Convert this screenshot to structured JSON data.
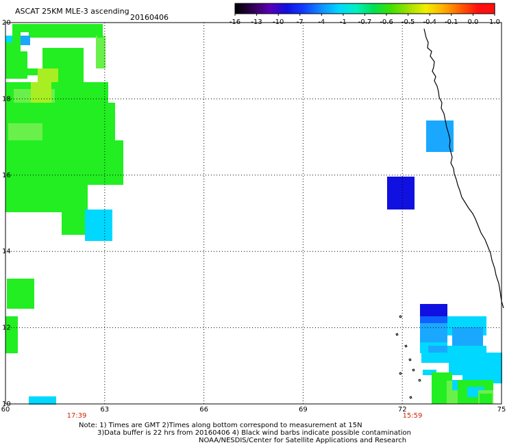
{
  "header": {
    "title": "ASCAT 25KM MLE-3 ascending",
    "date": "20160406"
  },
  "colorbar": {
    "ticks": [
      "-16",
      "-13",
      "-10",
      "-7",
      "-4",
      "-1",
      "-0.7",
      "-0.6",
      "-0.5",
      "-0.4",
      "-0.1",
      "0.0",
      "1.0"
    ],
    "colors": [
      "#000000",
      "#300050",
      "#5a00b8",
      "#1010e0",
      "#1040ff",
      "#1090ff",
      "#00d8ff",
      "#00f0c0",
      "#00e050",
      "#40e000",
      "#a0e000",
      "#f0f000",
      "#ffb000",
      "#ff6000",
      "#ff1010"
    ]
  },
  "map": {
    "lat_labels": [
      "20",
      "18",
      "16",
      "14",
      "12",
      "10"
    ],
    "lon_labels": [
      "60",
      "63",
      "66",
      "69",
      "72",
      "75"
    ],
    "pass_times": [
      "17:39",
      "15:59"
    ],
    "palette": {
      "green": "#22ee22",
      "light_green": "#6af04a",
      "yellow_green": "#a8ee22",
      "cyan": "#00d8ff",
      "light_blue": "#1aa8ff",
      "medium_blue": "#1060ff",
      "dark_blue": "#1010e0",
      "time_red": "#cc2200"
    }
  },
  "footer": {
    "line1": "Note: 1) Times are GMT 2)Times along bottom correspond to measurement at 15N",
    "line2": "3)Data buffer is 22 hrs from 20160406 4) Black wind barbs indicate possible contamination",
    "line3": "NOAA/NESDIS/Center for Satellite Applications and Research"
  }
}
